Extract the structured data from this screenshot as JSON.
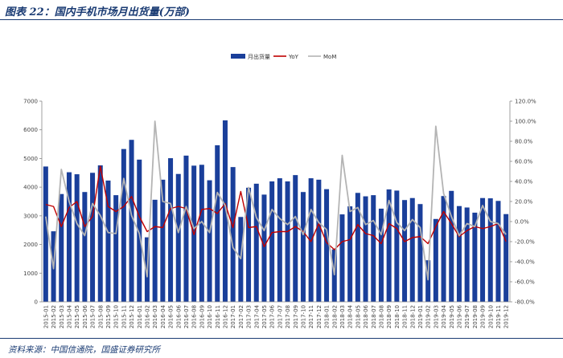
{
  "header": {
    "title": "图表 22：国内手机市场月出货量(万部)"
  },
  "footer": {
    "source": "资料来源：中国信通院，国盛证券研究所"
  },
  "colors": {
    "bar": "#1a3f9a",
    "yoy": "#c00000",
    "mom": "#b4b4b4",
    "header_text": "#1a3b73"
  },
  "chart_data": {
    "type": "bar",
    "legend": [
      "月出货量",
      "YoY",
      "MoM"
    ],
    "legend_position": "top-center",
    "grid": false,
    "y_left_ticks": [
      "0",
      "1000",
      "2000",
      "3000",
      "4000",
      "5000",
      "6000",
      "7000"
    ],
    "y_left_range": [
      0,
      7000
    ],
    "y_right_ticks": [
      "-80.0%",
      "-60.0%",
      "-40.0%",
      "-20.0%",
      "0.0%",
      "20.0%",
      "40.0%",
      "60.0%",
      "80.0%",
      "100.0%",
      "120.0%"
    ],
    "y_right_range": [
      -80,
      120
    ],
    "categories": [
      "2015-01",
      "2015-02",
      "2015-03",
      "2015-04",
      "2015-05",
      "2015-06",
      "2015-07",
      "2015-08",
      "2015-09",
      "2015-10",
      "2015-11",
      "2015-12",
      "2016-01",
      "2016-02",
      "2016-03",
      "2016-04",
      "2016-05",
      "2016-06",
      "2016-07",
      "2016-08",
      "2016-09",
      "2016-10",
      "2016-11",
      "2016-12",
      "2017-01",
      "2017-02",
      "2017-03",
      "2017-04",
      "2017-05",
      "2017-06",
      "2017-07",
      "2017-08",
      "2017-09",
      "2017-10",
      "2017-11",
      "2017-12",
      "2018-01",
      "2018-02",
      "2018-03",
      "2018-04",
      "2018-05",
      "2018-06",
      "2018-07",
      "2018-08",
      "2018-09",
      "2018-10",
      "2018-11",
      "2018-12",
      "2019-01",
      "2019-02",
      "2019-03",
      "2019-04",
      "2019-05",
      "2019-06",
      "2019-07",
      "2019-08",
      "2019-09",
      "2019-10",
      "2019-11",
      "2019-12"
    ],
    "series": [
      {
        "name": "月出货量",
        "type": "bar",
        "axis": "left",
        "values": [
          4720,
          2460,
          3760,
          4520,
          4450,
          3830,
          4500,
          4760,
          4230,
          3720,
          5330,
          5650,
          4960,
          2250,
          3560,
          4260,
          5010,
          4460,
          5100,
          4750,
          4780,
          4240,
          5460,
          6330,
          4700,
          2960,
          3980,
          4120,
          3740,
          4200,
          4310,
          4200,
          4420,
          3830,
          4310,
          4260,
          3930,
          1830,
          3050,
          3330,
          3800,
          3680,
          3720,
          3250,
          3920,
          3880,
          3550,
          3620,
          3410,
          1450,
          2890,
          3690,
          3870,
          3340,
          3290,
          3110,
          3620,
          3610,
          3520,
          3060
        ]
      },
      {
        "name": "YoY",
        "type": "line",
        "axis": "right",
        "values": [
          17,
          15,
          -5,
          14,
          20,
          -5,
          5,
          55,
          15,
          10,
          15,
          25,
          5,
          -10,
          -5,
          -6,
          13,
          15,
          13,
          -13,
          12,
          13,
          8,
          18,
          -6,
          30,
          -6,
          -5,
          -25,
          -11,
          -10,
          -10,
          -5,
          -10,
          -20,
          -2,
          -21,
          -28,
          -20,
          -18,
          -3,
          -12,
          -14,
          -22,
          -2,
          -7,
          -20,
          -16,
          -15,
          -22,
          -5,
          10,
          -2,
          -15,
          -9,
          -5,
          -7,
          -5,
          -2,
          -20
        ]
      },
      {
        "name": "MoM",
        "type": "line",
        "axis": "right",
        "values": [
          5,
          -47,
          52,
          20,
          -2,
          -14,
          18,
          6,
          -11,
          -12,
          43,
          6,
          -12,
          -55,
          100,
          20,
          18,
          -11,
          15,
          -7,
          0,
          -11,
          29,
          16,
          -26,
          -37,
          34,
          4,
          -9,
          12,
          3,
          -3,
          5,
          -13,
          12,
          -1,
          -8,
          -53,
          66,
          10,
          14,
          -3,
          1,
          -13,
          21,
          -1,
          -9,
          2,
          -6,
          -58,
          95,
          28,
          5,
          -14,
          -2,
          -5,
          16,
          0,
          -2,
          -13
        ]
      }
    ]
  }
}
